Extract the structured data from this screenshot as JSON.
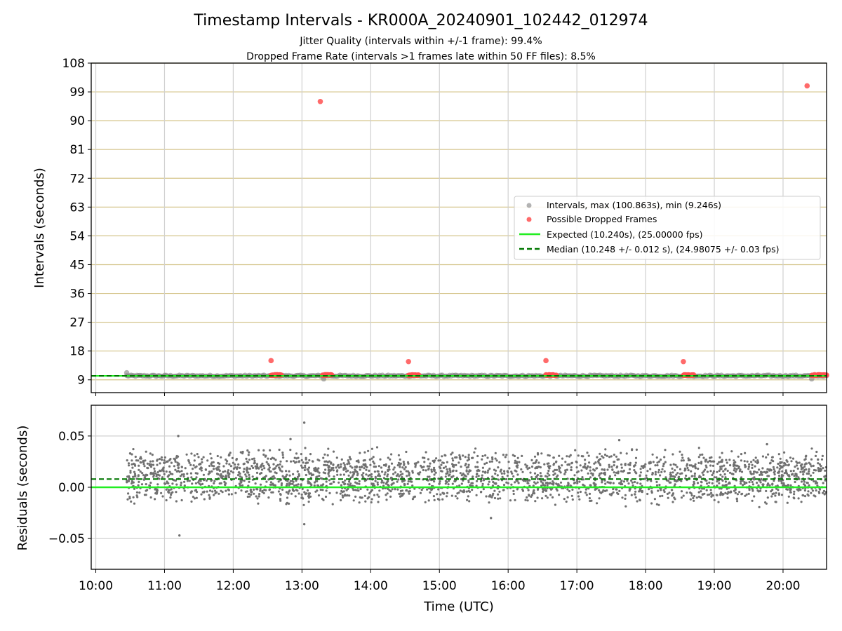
{
  "chart_data": [
    {
      "type": "scatter",
      "title": "Timestamp Intervals - KR000A_20240901_102442_012974",
      "subtitle_lines": [
        "Jitter Quality (intervals within +/-1 frame): 99.4%",
        "Dropped Frame Rate (intervals >1 frames late within 50 FF files): 8.5%"
      ],
      "ylabel": "Intervals (seconds)",
      "xlabel": "",
      "ylim": [
        5,
        108
      ],
      "xlim": [
        "09:56",
        "20:38"
      ],
      "yticks": [
        "9",
        "18",
        "27",
        "36",
        "45",
        "54",
        "63",
        "72",
        "81",
        "90",
        "99",
        "108"
      ],
      "ygrid": "horizontal gridlines at y ticks (tan)",
      "xgrid": "vertical gridlines at hour ticks (gray)",
      "legend_position": "center-right",
      "legend": [
        {
          "label": "Intervals, max (100.863s), min (9.246s)",
          "kind": "marker",
          "color": "#808080"
        },
        {
          "label": "Possible Dropped Frames",
          "kind": "marker",
          "color": "#ff5050"
        },
        {
          "label": "Expected (10.240s), (25.00000 fps)",
          "kind": "line",
          "color": "#22ee22"
        },
        {
          "label": "Median (10.248 +/- 0.012 s), (24.98075 +/- 0.03 fps)",
          "kind": "dashed",
          "color": "#007700"
        }
      ],
      "series": [
        {
          "name": "Intervals, max (100.863s), min (9.246s)",
          "color": "#808080",
          "time_range": [
            "10:27",
            "20:38"
          ],
          "typical_value": 10.24,
          "outliers": [
            {
              "x": "10:27",
              "y": 11.2
            },
            {
              "x": "13:19",
              "y": 9.3
            },
            {
              "x": "20:25",
              "y": 9.3
            }
          ]
        },
        {
          "name": "Possible Dropped Frames",
          "color": "#ff5050",
          "clusters": [
            {
              "from": "12:33",
              "to": "12:42",
              "y": 10.48
            },
            {
              "from": "13:18",
              "to": "13:26",
              "y": 10.48
            },
            {
              "from": "14:33",
              "to": "14:42",
              "y": 10.48
            },
            {
              "from": "16:33",
              "to": "16:42",
              "y": 10.48
            },
            {
              "from": "18:33",
              "to": "18:42",
              "y": 10.48
            },
            {
              "from": "20:25",
              "to": "20:38",
              "y": 10.48
            }
          ],
          "points": [
            {
              "x": "12:33",
              "y": 15.0
            },
            {
              "x": "13:16",
              "y": 96.0
            },
            {
              "x": "14:33",
              "y": 14.7
            },
            {
              "x": "16:33",
              "y": 15.0
            },
            {
              "x": "18:33",
              "y": 14.7
            },
            {
              "x": "20:21",
              "y": 100.9
            }
          ]
        },
        {
          "name": "Expected (10.240s), (25.00000 fps)",
          "color": "#22ee22",
          "y": 10.24
        },
        {
          "name": "Median (10.248 +/- 0.012 s), (24.98075 +/- 0.03 fps)",
          "color": "#007700",
          "y": 10.248
        }
      ]
    },
    {
      "type": "scatter",
      "title": "",
      "ylabel": "Residuals (seconds)",
      "xlabel": "Time (UTC)",
      "ylim": [
        -0.08,
        0.08
      ],
      "yticks": [
        "0.05",
        "0.00",
        "−0.05"
      ],
      "xlim": [
        "09:56",
        "20:38"
      ],
      "xticks": [
        "10:00",
        "11:00",
        "12:00",
        "13:00",
        "14:00",
        "15:00",
        "16:00",
        "17:00",
        "18:00",
        "19:00",
        "20:00"
      ],
      "grid": true,
      "series": [
        {
          "name": "",
          "color": "#707070",
          "time_range": [
            "10:27",
            "20:38"
          ],
          "bands": [
            0.0,
            0.02
          ],
          "spread": 0.012,
          "outliers": [
            {
              "x": "13:02",
              "y": 0.063
            },
            {
              "x": "11:12",
              "y": 0.05
            },
            {
              "x": "12:50",
              "y": 0.047
            },
            {
              "x": "17:37",
              "y": 0.046
            },
            {
              "x": "13:02",
              "y": -0.036
            },
            {
              "x": "11:13",
              "y": -0.047
            },
            {
              "x": "15:45",
              "y": -0.03
            },
            {
              "x": "10:30",
              "y": 0.033
            },
            {
              "x": "19:46",
              "y": 0.042
            }
          ]
        },
        {
          "name": "",
          "color": "#22ee22",
          "y": 0.0
        },
        {
          "name": "",
          "color": "#007700",
          "y": 0.008
        }
      ]
    }
  ]
}
